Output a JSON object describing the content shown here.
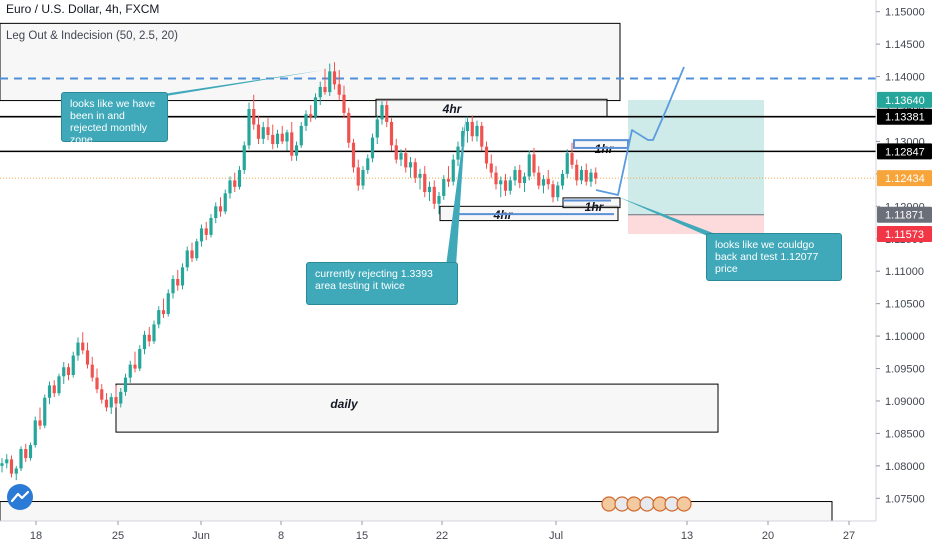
{
  "header": {
    "symbol": "Euro / U.S. Dollar, 4h, FXCM",
    "indicator": "Leg Out & Indecision (50, 2.5, 20)"
  },
  "chart_data": {
    "type": "candlestick",
    "timeframe": "4h",
    "y_axis": {
      "ylim": [
        1.0715,
        1.1518
      ],
      "ticks": [
        "1.15000",
        "1.14500",
        "1.14000",
        "1.13500",
        "1.13000",
        "1.12500",
        "1.12000",
        "1.11500",
        "1.11000",
        "1.10500",
        "1.10000",
        "1.09500",
        "1.09000",
        "1.08500",
        "1.08000",
        "1.07500"
      ],
      "tick_values": [
        1.15,
        1.145,
        1.14,
        1.135,
        1.13,
        1.125,
        1.12,
        1.115,
        1.11,
        1.105,
        1.1,
        1.095,
        1.09,
        1.085,
        1.08,
        1.075
      ]
    },
    "x_axis": {
      "ticks": [
        {
          "label": "18",
          "date": "2020-05-18"
        },
        {
          "label": "25",
          "date": "2020-05-25"
        },
        {
          "label": "Jun",
          "date": "2020-06-01"
        },
        {
          "label": "8",
          "date": "2020-06-08"
        },
        {
          "label": "15",
          "date": "2020-06-15"
        },
        {
          "label": "22",
          "date": "2020-06-22"
        },
        {
          "label": "Jul",
          "date": "2020-07-01"
        },
        {
          "label": "13",
          "date": "2020-07-13"
        },
        {
          "label": "20",
          "date": "2020-07-20"
        },
        {
          "label": "27",
          "date": "2020-07-27"
        }
      ]
    },
    "price_labels": [
      {
        "text": "1.13640",
        "value": 1.1364,
        "color": "#26a69a"
      },
      {
        "text": "1.13381",
        "value": 1.13381,
        "color": "#000000"
      },
      {
        "text": "1.12847",
        "value": 1.12847,
        "color": "#000000"
      },
      {
        "text": "1.12434",
        "value": 1.12434,
        "color": "#f7a53b"
      },
      {
        "text": "1.11871",
        "value": 1.11871,
        "color": "#6b6f7a"
      },
      {
        "text": "1.11573",
        "value": 1.11573,
        "color": "#f23645"
      }
    ],
    "levels": [
      {
        "name": "monthly-level",
        "value": 1.1397,
        "style": "dashed",
        "color": "#4f8fd9"
      },
      {
        "name": "resistance-1",
        "value": 1.13381,
        "style": "solid",
        "color": "#000000"
      },
      {
        "name": "resistance-2",
        "value": 1.12847,
        "style": "solid",
        "color": "#000000"
      },
      {
        "name": "last-price",
        "value": 1.12434,
        "style": "dotted",
        "color": "#f7a53b"
      }
    ],
    "zones": [
      {
        "label": "",
        "y_top": 1.1482,
        "y_bottom": 1.1363
      },
      {
        "label": "4hr",
        "y_top": 1.1365,
        "y_bottom": 1.1338
      },
      {
        "label": "4hr",
        "y_top": 1.12,
        "y_bottom": 1.1178
      },
      {
        "label": "1hr",
        "y_top": 1.1302,
        "y_bottom": 1.129
      },
      {
        "label": "1hr",
        "y_top": 1.1213,
        "y_bottom": 1.1198
      },
      {
        "label": "daily",
        "y_top": 1.0926,
        "y_bottom": 1.0852
      },
      {
        "label": "",
        "y_top": 1.0745,
        "y_bottom": 1.0715
      }
    ],
    "trade": {
      "entry": 1.11871,
      "target": 1.1364,
      "stop": 1.11573
    },
    "annotations": [
      "looks like we have been in and rejected monthly zone",
      "currently rejecting 1.3393 area testing it twice",
      "looks like we couldgo back and test 1.12077 price"
    ],
    "candles": [
      [
        1.08,
        1.0812,
        1.079,
        1.0804
      ],
      [
        1.0804,
        1.0818,
        1.0796,
        1.081
      ],
      [
        1.081,
        1.0816,
        1.0782,
        1.0788
      ],
      [
        1.0788,
        1.08,
        1.0778,
        1.0796
      ],
      [
        1.0796,
        1.083,
        1.0792,
        1.0826
      ],
      [
        1.0826,
        1.0834,
        1.0806,
        1.0812
      ],
      [
        1.0812,
        1.0836,
        1.0808,
        1.0832
      ],
      [
        1.0832,
        1.0876,
        1.0828,
        1.087
      ],
      [
        1.087,
        1.089,
        1.0856,
        1.0862
      ],
      [
        1.0862,
        1.091,
        1.0858,
        1.0905
      ],
      [
        1.0905,
        1.093,
        1.0895,
        1.0924
      ],
      [
        1.0924,
        1.0932,
        1.0906,
        1.0912
      ],
      [
        1.0912,
        1.0942,
        1.0908,
        1.0938
      ],
      [
        1.0938,
        1.096,
        1.0926,
        1.0952
      ],
      [
        1.0952,
        1.0958,
        1.0932,
        1.094
      ],
      [
        1.094,
        1.0976,
        1.0936,
        1.097
      ],
      [
        1.097,
        1.0998,
        1.0962,
        1.099
      ],
      [
        1.099,
        1.1006,
        1.0972,
        1.0978
      ],
      [
        1.0978,
        1.099,
        1.095,
        1.0956
      ],
      [
        1.0956,
        1.0968,
        1.093,
        1.0936
      ],
      [
        1.0936,
        1.095,
        1.0912,
        1.0918
      ],
      [
        1.0918,
        1.0926,
        1.0896,
        1.0902
      ],
      [
        1.0902,
        1.0912,
        1.0884,
        1.089
      ],
      [
        1.089,
        1.0912,
        1.088,
        1.0906
      ],
      [
        1.0906,
        1.0924,
        1.089,
        1.0896
      ],
      [
        1.0896,
        1.092,
        1.089,
        1.0914
      ],
      [
        1.0914,
        1.0942,
        1.0908,
        1.0936
      ],
      [
        1.0936,
        1.0962,
        1.0928,
        1.0956
      ],
      [
        1.0956,
        1.0976,
        1.0944,
        1.095
      ],
      [
        1.095,
        1.0986,
        1.0946,
        1.098
      ],
      [
        1.098,
        1.1008,
        1.0972,
        1.1002
      ],
      [
        1.1002,
        1.1014,
        1.0984,
        1.0992
      ],
      [
        1.0992,
        1.1024,
        1.0988,
        1.1018
      ],
      [
        1.1018,
        1.1046,
        1.1012,
        1.104
      ],
      [
        1.104,
        1.1058,
        1.1028,
        1.1034
      ],
      [
        1.1034,
        1.1072,
        1.103,
        1.1066
      ],
      [
        1.1066,
        1.1094,
        1.1058,
        1.1088
      ],
      [
        1.1088,
        1.1102,
        1.107,
        1.1078
      ],
      [
        1.1078,
        1.1112,
        1.1072,
        1.1106
      ],
      [
        1.1106,
        1.1138,
        1.11,
        1.1132
      ],
      [
        1.1132,
        1.1144,
        1.1114,
        1.112
      ],
      [
        1.112,
        1.115,
        1.1116,
        1.1146
      ],
      [
        1.1146,
        1.1172,
        1.1138,
        1.1166
      ],
      [
        1.1166,
        1.1176,
        1.1148,
        1.1156
      ],
      [
        1.1156,
        1.1188,
        1.1152,
        1.1182
      ],
      [
        1.1182,
        1.1206,
        1.1174,
        1.12
      ],
      [
        1.12,
        1.1214,
        1.1184,
        1.1192
      ],
      [
        1.1192,
        1.1226,
        1.1188,
        1.122
      ],
      [
        1.122,
        1.1246,
        1.1212,
        1.124
      ],
      [
        1.124,
        1.1252,
        1.1222,
        1.123
      ],
      [
        1.123,
        1.1262,
        1.1226,
        1.1256
      ],
      [
        1.1256,
        1.13,
        1.125,
        1.1294
      ],
      [
        1.1294,
        1.136,
        1.1288,
        1.135
      ],
      [
        1.135,
        1.1372,
        1.1318,
        1.1326
      ],
      [
        1.1326,
        1.134,
        1.1296,
        1.1304
      ],
      [
        1.1304,
        1.133,
        1.1296,
        1.1322
      ],
      [
        1.1322,
        1.1336,
        1.1302,
        1.131
      ],
      [
        1.131,
        1.1326,
        1.1288,
        1.1296
      ],
      [
        1.1296,
        1.1318,
        1.129,
        1.1312
      ],
      [
        1.1312,
        1.1324,
        1.1296,
        1.13
      ],
      [
        1.13,
        1.1318,
        1.1286,
        1.1314
      ],
      [
        1.1314,
        1.133,
        1.127,
        1.1278
      ],
      [
        1.1278,
        1.13,
        1.127,
        1.1294
      ],
      [
        1.1294,
        1.133,
        1.129,
        1.1324
      ],
      [
        1.1324,
        1.1348,
        1.1316,
        1.1342
      ],
      [
        1.1342,
        1.1356,
        1.133,
        1.1338
      ],
      [
        1.1338,
        1.1374,
        1.1334,
        1.1368
      ],
      [
        1.1368,
        1.1392,
        1.1356,
        1.1384
      ],
      [
        1.1384,
        1.1412,
        1.1372,
        1.1376
      ],
      [
        1.1376,
        1.142,
        1.137,
        1.1408
      ],
      [
        1.1408,
        1.1422,
        1.138,
        1.1388
      ],
      [
        1.1388,
        1.141,
        1.1364,
        1.1372
      ],
      [
        1.1372,
        1.1386,
        1.1336,
        1.1344
      ],
      [
        1.1344,
        1.1352,
        1.129,
        1.1298
      ],
      [
        1.1298,
        1.1304,
        1.1252,
        1.126
      ],
      [
        1.126,
        1.1272,
        1.1224,
        1.1232
      ],
      [
        1.1232,
        1.1262,
        1.1226,
        1.1256
      ],
      [
        1.1256,
        1.128,
        1.125,
        1.1274
      ],
      [
        1.1274,
        1.1312,
        1.1268,
        1.1306
      ],
      [
        1.1306,
        1.134,
        1.1296,
        1.1334
      ],
      [
        1.1334,
        1.1362,
        1.1326,
        1.1356
      ],
      [
        1.1356,
        1.1364,
        1.1322,
        1.133
      ],
      [
        1.133,
        1.1336,
        1.1286,
        1.1294
      ],
      [
        1.1294,
        1.1304,
        1.1266,
        1.1272
      ],
      [
        1.1272,
        1.1288,
        1.1262,
        1.1282
      ],
      [
        1.1282,
        1.129,
        1.1252,
        1.126
      ],
      [
        1.126,
        1.1276,
        1.1244,
        1.1268
      ],
      [
        1.1268,
        1.1274,
        1.1236,
        1.1244
      ],
      [
        1.1244,
        1.1258,
        1.1226,
        1.125
      ],
      [
        1.125,
        1.1262,
        1.1214,
        1.1222
      ],
      [
        1.1222,
        1.1238,
        1.1208,
        1.123
      ],
      [
        1.123,
        1.124,
        1.1196,
        1.1204
      ],
      [
        1.1204,
        1.1222,
        1.1188,
        1.1216
      ],
      [
        1.1216,
        1.1248,
        1.121,
        1.1242
      ],
      [
        1.1242,
        1.1262,
        1.123,
        1.1238
      ],
      [
        1.1238,
        1.128,
        1.1232,
        1.1272
      ],
      [
        1.1272,
        1.13,
        1.1262,
        1.1292
      ],
      [
        1.1292,
        1.1322,
        1.1284,
        1.1316
      ],
      [
        1.1316,
        1.1338,
        1.1298,
        1.133
      ],
      [
        1.133,
        1.134,
        1.13,
        1.1308
      ],
      [
        1.1308,
        1.1332,
        1.13,
        1.1324
      ],
      [
        1.1324,
        1.133,
        1.1286,
        1.1292
      ],
      [
        1.1292,
        1.13,
        1.1258,
        1.1266
      ],
      [
        1.1266,
        1.128,
        1.1244,
        1.1252
      ],
      [
        1.1252,
        1.1262,
        1.1226,
        1.1234
      ],
      [
        1.1234,
        1.1246,
        1.1214,
        1.124
      ],
      [
        1.124,
        1.125,
        1.1216,
        1.1224
      ],
      [
        1.1224,
        1.1246,
        1.1218,
        1.124
      ],
      [
        1.124,
        1.1262,
        1.1232,
        1.1256
      ],
      [
        1.1256,
        1.1264,
        1.1228,
        1.1236
      ],
      [
        1.1236,
        1.1252,
        1.1222,
        1.1246
      ],
      [
        1.1246,
        1.1286,
        1.124,
        1.128
      ],
      [
        1.128,
        1.129,
        1.1246,
        1.1252
      ],
      [
        1.1252,
        1.1262,
        1.1226,
        1.1232
      ],
      [
        1.1232,
        1.1248,
        1.122,
        1.1242
      ],
      [
        1.1242,
        1.1256,
        1.1226,
        1.1234
      ],
      [
        1.1234,
        1.124,
        1.1206,
        1.1214
      ],
      [
        1.1214,
        1.1238,
        1.1208,
        1.1232
      ],
      [
        1.1232,
        1.1256,
        1.1226,
        1.125
      ],
      [
        1.125,
        1.1288,
        1.1244,
        1.1282
      ],
      [
        1.1282,
        1.1298,
        1.1258,
        1.1264
      ],
      [
        1.1264,
        1.1272,
        1.1232,
        1.124
      ],
      [
        1.124,
        1.1262,
        1.1234,
        1.1256
      ],
      [
        1.1256,
        1.1266,
        1.1232,
        1.1238
      ],
      [
        1.1238,
        1.1258,
        1.123,
        1.1252
      ],
      [
        1.1252,
        1.126,
        1.1234,
        1.1243
      ]
    ]
  }
}
